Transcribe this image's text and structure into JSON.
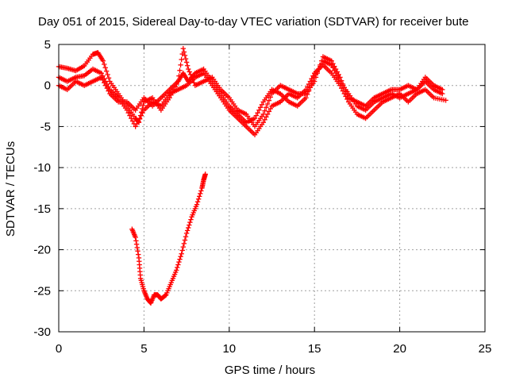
{
  "chart_data": {
    "type": "scatter",
    "title": "Day 051 of 2015, Sidereal Day-to-day VTEC variation (SDTVAR) for receiver bute",
    "xlabel": "GPS time / hours",
    "ylabel": "SDTVAR / TECUs",
    "xlim": [
      0,
      25
    ],
    "ylim": [
      -30,
      5
    ],
    "xticks": [
      0,
      5,
      10,
      15,
      20,
      25
    ],
    "yticks": [
      -30,
      -25,
      -20,
      -15,
      -10,
      -5,
      0,
      5
    ],
    "grid": true,
    "marker": "+",
    "color": "#ff0000",
    "series": [
      {
        "name": "trace-1",
        "points": [
          [
            0.0,
            2.3
          ],
          [
            0.5,
            2.1
          ],
          [
            1.0,
            1.8
          ],
          [
            1.5,
            2.4
          ],
          [
            2.0,
            3.8
          ],
          [
            2.3,
            4.0
          ],
          [
            2.6,
            3.0
          ],
          [
            3.0,
            0.5
          ],
          [
            3.5,
            -1.0
          ],
          [
            4.0,
            -2.5
          ],
          [
            4.5,
            -4.0
          ],
          [
            4.7,
            -4.5
          ],
          [
            5.0,
            -2.0
          ],
          [
            5.5,
            -1.5
          ],
          [
            6.0,
            -3.0
          ],
          [
            6.5,
            -1.5
          ],
          [
            7.0,
            0.5
          ],
          [
            7.3,
            1.5
          ],
          [
            7.6,
            0.5
          ],
          [
            8.0,
            1.5
          ],
          [
            8.5,
            2.0
          ],
          [
            9.0,
            0.5
          ],
          [
            9.5,
            -1.0
          ],
          [
            10.0,
            -2.5
          ],
          [
            10.5,
            -3.5
          ],
          [
            11.0,
            -4.5
          ],
          [
            11.5,
            -4.0
          ],
          [
            12.0,
            -2.0
          ],
          [
            12.5,
            -0.5
          ],
          [
            13.0,
            -1.0
          ],
          [
            13.5,
            -2.0
          ],
          [
            14.0,
            -2.5
          ],
          [
            14.5,
            -1.5
          ],
          [
            15.0,
            1.0
          ],
          [
            15.5,
            3.0
          ],
          [
            16.0,
            2.5
          ],
          [
            16.5,
            0.5
          ],
          [
            17.0,
            -1.0
          ],
          [
            17.5,
            -2.5
          ],
          [
            18.0,
            -3.0
          ],
          [
            18.5,
            -2.0
          ],
          [
            19.0,
            -1.5
          ],
          [
            19.5,
            -1.0
          ],
          [
            20.0,
            -1.5
          ],
          [
            20.5,
            -1.0
          ],
          [
            21.0,
            -0.5
          ],
          [
            21.5,
            0.5
          ],
          [
            22.0,
            -0.5
          ],
          [
            22.5,
            -1.0
          ]
        ]
      },
      {
        "name": "trace-2",
        "points": [
          [
            0.0,
            1.0
          ],
          [
            0.5,
            0.5
          ],
          [
            1.0,
            1.0
          ],
          [
            1.5,
            1.2
          ],
          [
            2.0,
            2.0
          ],
          [
            2.5,
            1.5
          ],
          [
            3.0,
            -0.5
          ],
          [
            3.5,
            -1.5
          ],
          [
            4.0,
            -3.0
          ],
          [
            4.5,
            -5.0
          ],
          [
            5.0,
            -3.0
          ],
          [
            5.5,
            -2.0
          ],
          [
            6.0,
            -2.5
          ],
          [
            6.5,
            -1.0
          ],
          [
            7.0,
            -0.5
          ],
          [
            7.5,
            0.0
          ],
          [
            8.0,
            1.0
          ],
          [
            8.5,
            1.5
          ],
          [
            9.0,
            0.0
          ],
          [
            9.5,
            -1.5
          ],
          [
            10.0,
            -3.0
          ],
          [
            10.5,
            -4.0
          ],
          [
            11.0,
            -5.0
          ],
          [
            11.5,
            -6.0
          ],
          [
            12.0,
            -4.5
          ],
          [
            12.5,
            -2.5
          ],
          [
            13.0,
            -2.0
          ],
          [
            13.5,
            -1.0
          ],
          [
            14.0,
            -1.5
          ],
          [
            14.5,
            -0.5
          ],
          [
            15.0,
            1.5
          ],
          [
            15.5,
            2.5
          ],
          [
            16.0,
            1.5
          ],
          [
            16.5,
            0.0
          ],
          [
            17.0,
            -2.0
          ],
          [
            17.5,
            -3.5
          ],
          [
            18.0,
            -4.0
          ],
          [
            18.5,
            -3.0
          ],
          [
            19.0,
            -2.0
          ],
          [
            19.5,
            -1.5
          ],
          [
            20.0,
            -1.0
          ],
          [
            20.5,
            -2.0
          ],
          [
            21.0,
            -1.0
          ],
          [
            21.5,
            -0.5
          ],
          [
            22.0,
            -1.5
          ],
          [
            22.7,
            -1.8
          ]
        ]
      },
      {
        "name": "trace-3",
        "points": [
          [
            0.0,
            0.0
          ],
          [
            0.5,
            -0.5
          ],
          [
            1.0,
            0.5
          ],
          [
            1.5,
            0.0
          ],
          [
            2.0,
            0.5
          ],
          [
            2.5,
            1.0
          ],
          [
            3.0,
            -1.0
          ],
          [
            3.5,
            -2.0
          ],
          [
            4.0,
            -2.0
          ],
          [
            4.5,
            -3.0
          ],
          [
            5.0,
            -1.5
          ],
          [
            5.5,
            -2.5
          ],
          [
            6.0,
            -1.5
          ],
          [
            6.5,
            -0.5
          ],
          [
            7.0,
            0.5
          ],
          [
            7.3,
            4.5
          ],
          [
            7.6,
            2.0
          ],
          [
            8.0,
            0.0
          ],
          [
            8.5,
            0.5
          ],
          [
            9.0,
            1.0
          ],
          [
            9.5,
            -0.5
          ],
          [
            10.0,
            -1.5
          ],
          [
            10.5,
            -3.0
          ],
          [
            11.0,
            -3.5
          ],
          [
            11.5,
            -5.0
          ],
          [
            12.0,
            -3.5
          ],
          [
            12.5,
            -1.0
          ],
          [
            13.0,
            0.0
          ],
          [
            13.5,
            -0.5
          ],
          [
            14.0,
            -1.0
          ],
          [
            14.5,
            -1.0
          ],
          [
            15.0,
            0.5
          ],
          [
            15.5,
            3.5
          ],
          [
            16.0,
            3.0
          ],
          [
            16.5,
            1.0
          ],
          [
            17.0,
            -1.5
          ],
          [
            17.5,
            -2.0
          ],
          [
            18.0,
            -2.5
          ],
          [
            18.5,
            -1.5
          ],
          [
            19.0,
            -1.0
          ],
          [
            19.5,
            -0.5
          ],
          [
            20.0,
            -0.5
          ],
          [
            20.5,
            0.0
          ],
          [
            21.0,
            -0.5
          ],
          [
            21.5,
            1.0
          ],
          [
            22.0,
            0.0
          ],
          [
            22.5,
            -0.5
          ]
        ]
      },
      {
        "name": "trace-4",
        "points": [
          [
            4.3,
            -17.5
          ],
          [
            4.5,
            -18.5
          ],
          [
            4.7,
            -21.0
          ],
          [
            4.8,
            -23.5
          ],
          [
            5.0,
            -25.0
          ],
          [
            5.2,
            -26.0
          ],
          [
            5.4,
            -26.5
          ],
          [
            5.6,
            -25.5
          ],
          [
            5.8,
            -25.5
          ],
          [
            6.0,
            -26.0
          ],
          [
            6.3,
            -25.5
          ],
          [
            6.6,
            -24.0
          ],
          [
            6.9,
            -22.5
          ],
          [
            7.2,
            -20.5
          ],
          [
            7.5,
            -18.0
          ],
          [
            7.8,
            -16.0
          ],
          [
            8.1,
            -14.5
          ],
          [
            8.4,
            -12.5
          ],
          [
            8.5,
            -11.5
          ],
          [
            8.6,
            -10.8
          ]
        ]
      }
    ]
  }
}
